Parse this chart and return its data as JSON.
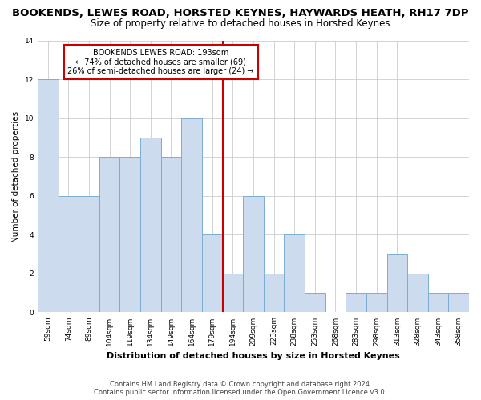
{
  "title": "BOOKENDS, LEWES ROAD, HORSTED KEYNES, HAYWARDS HEATH, RH17 7DP",
  "subtitle": "Size of property relative to detached houses in Horsted Keynes",
  "xlabel": "Distribution of detached houses by size in Horsted Keynes",
  "ylabel": "Number of detached properties",
  "categories": [
    "59sqm",
    "74sqm",
    "89sqm",
    "104sqm",
    "119sqm",
    "134sqm",
    "149sqm",
    "164sqm",
    "179sqm",
    "194sqm",
    "209sqm",
    "223sqm",
    "238sqm",
    "253sqm",
    "268sqm",
    "283sqm",
    "298sqm",
    "313sqm",
    "328sqm",
    "343sqm",
    "358sqm"
  ],
  "values": [
    12,
    6,
    6,
    8,
    8,
    9,
    8,
    10,
    4,
    2,
    6,
    2,
    4,
    1,
    0,
    1,
    1,
    3,
    2,
    1,
    1
  ],
  "bar_color": "#ccdcee",
  "bar_edge_color": "#7aaed0",
  "annotation_text": "BOOKENDS LEWES ROAD: 193sqm\n← 74% of detached houses are smaller (69)\n26% of semi-detached houses are larger (24) →",
  "annotation_box_color": "#ffffff",
  "annotation_box_edge_color": "#cc0000",
  "ref_line_index": 9,
  "ylim": [
    0,
    14
  ],
  "yticks": [
    0,
    2,
    4,
    6,
    8,
    10,
    12,
    14
  ],
  "grid_color": "#cccccc",
  "footer_line1": "Contains HM Land Registry data © Crown copyright and database right 2024.",
  "footer_line2": "Contains public sector information licensed under the Open Government Licence v3.0.",
  "title_fontsize": 9.5,
  "subtitle_fontsize": 8.5,
  "xlabel_fontsize": 8,
  "ylabel_fontsize": 7.5,
  "tick_fontsize": 6.5,
  "annotation_fontsize": 7,
  "footer_fontsize": 6
}
